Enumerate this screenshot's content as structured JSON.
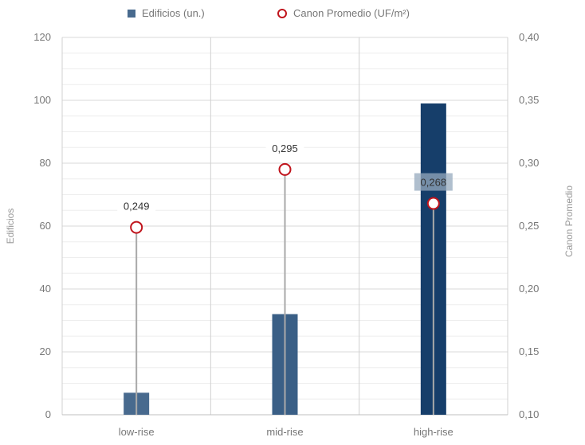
{
  "legend": {
    "bar_label": "Edificios (un.)",
    "marker_label": "Canon Promedio (UF/m²)"
  },
  "chart_data": {
    "type": "bar",
    "categories": [
      "low-rise",
      "mid-rise",
      "high-rise"
    ],
    "series": [
      {
        "name": "Edificios (un.)",
        "type": "bar",
        "axis": "left",
        "values": [
          7,
          32,
          99
        ],
        "colors": [
          "#486a8e",
          "#3a5f86",
          "#163e6a"
        ]
      },
      {
        "name": "Canon Promedio (UF/m²)",
        "type": "lollipop",
        "axis": "right",
        "values": [
          0.249,
          0.295,
          0.268
        ],
        "labels": [
          "0,249",
          "0,295",
          "0,268"
        ],
        "color": "#c0141c"
      }
    ],
    "ylabel_left": "Edificios",
    "ylabel_right": "Canon Promedio",
    "ylim_left": [
      0,
      120
    ],
    "ylim_right": [
      0.1,
      0.4
    ],
    "yticks_left": [
      "0",
      "20",
      "40",
      "60",
      "80",
      "100",
      "120"
    ],
    "yticks_right": [
      "0,10",
      "0,15",
      "0,20",
      "0,25",
      "0,30",
      "0,35",
      "0,40"
    ],
    "grid": true,
    "legend_position": "top-center"
  }
}
